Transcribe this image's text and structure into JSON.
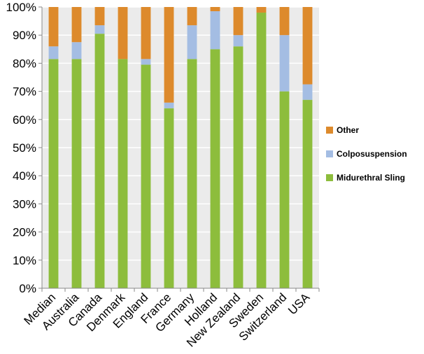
{
  "colors": {
    "midurethral_sling": "#8dbd3c",
    "colposuspension": "#a4bde3",
    "other": "#dd8a2c",
    "plot_background": "#ebebeb",
    "gridline": "#ffffff"
  },
  "chart_data": {
    "type": "bar",
    "stacked": true,
    "title": "",
    "xlabel": "",
    "ylabel": "",
    "ylim": [
      0,
      100
    ],
    "y_ticks": [
      "0%",
      "10%",
      "20%",
      "30%",
      "40%",
      "50%",
      "60%",
      "70%",
      "80%",
      "90%",
      "100%"
    ],
    "categories": [
      "Median",
      "Australia",
      "Canada",
      "Denmark",
      "England",
      "France",
      "Germany",
      "Holland",
      "New Zealand",
      "Sweden",
      "Switzerland",
      "USA"
    ],
    "series": [
      {
        "name": "Midurethral Sling",
        "color": "#8dbd3c",
        "values": [
          81.5,
          81.5,
          90.5,
          81.5,
          79.5,
          64,
          81.5,
          85,
          86,
          98,
          70,
          67
        ]
      },
      {
        "name": "Colposuspension",
        "color": "#a4bde3",
        "values": [
          4.5,
          6,
          3,
          0,
          2,
          2,
          12,
          13.5,
          4,
          0,
          20,
          5.5
        ]
      },
      {
        "name": "Other",
        "color": "#dd8a2c",
        "values": [
          14,
          12.5,
          6.5,
          18.5,
          18.5,
          34,
          6.5,
          1.5,
          10,
          2,
          10,
          27.5
        ]
      }
    ],
    "legend": {
      "placement": "right",
      "entries": [
        "Other",
        "Colposuspension",
        "Midurethral Sling"
      ]
    },
    "grid": true
  }
}
